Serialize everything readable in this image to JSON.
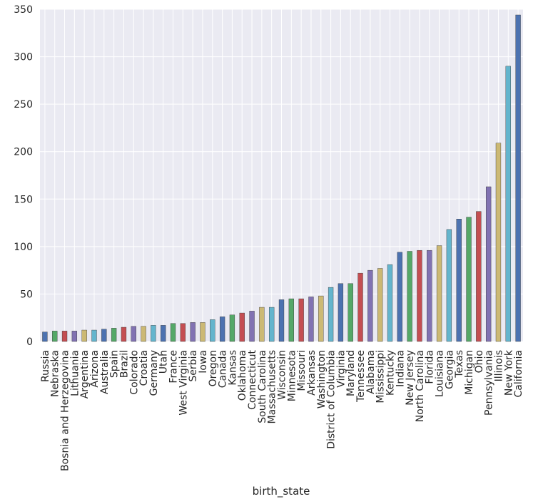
{
  "chart_data": {
    "type": "bar",
    "xlabel": "birth_state",
    "ylabel": "",
    "ylim": [
      0,
      350
    ],
    "yticks": [
      0,
      50,
      100,
      150,
      200,
      250,
      300,
      350
    ],
    "grid": true,
    "legend": "none",
    "palette": [
      "#4c72b0",
      "#55a868",
      "#c44e52",
      "#8172b2",
      "#ccb974",
      "#64b5cd"
    ],
    "background": "#eaeaf2",
    "categories": [
      "Russia",
      "Nebraska",
      "Bosnia and Herzegovina",
      "Lithuania",
      "Argentina",
      "Arizona",
      "Australia",
      "Spain",
      "Brazil",
      "Colorado",
      "Croatia",
      "Germany",
      "Utah",
      "France",
      "West Virginia",
      "Serbia",
      "Iowa",
      "Oregon",
      "Canada",
      "Kansas",
      "Oklahoma",
      "Connecticut",
      "South Carolina",
      "Massachusetts",
      "Wisconsin",
      "Minnesota",
      "Missouri",
      "Arkansas",
      "Washington",
      "District of Columbia",
      "Virginia",
      "Maryland",
      "Tennessee",
      "Alabama",
      "Mississippi",
      "Kentucky",
      "Indiana",
      "New Jersey",
      "North Carolina",
      "Florida",
      "Louisiana",
      "Georgia",
      "Texas",
      "Michigan",
      "Ohio",
      "Pennsylvania",
      "Illinois",
      "New York",
      "California"
    ],
    "values": [
      10,
      11,
      11,
      11,
      12,
      12,
      13,
      14,
      15,
      16,
      16,
      17,
      17,
      19,
      19,
      20,
      20,
      23,
      26,
      28,
      30,
      32,
      36,
      36,
      44,
      45,
      45,
      47,
      48,
      57,
      61,
      61,
      72,
      75,
      77,
      81,
      94,
      95,
      96,
      96,
      101,
      118,
      129,
      131,
      137,
      163,
      209,
      290,
      344
    ]
  }
}
